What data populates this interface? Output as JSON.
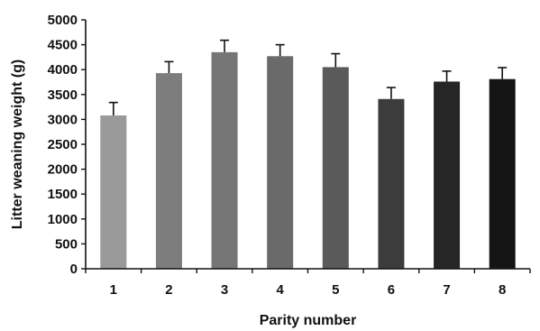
{
  "chart_data": {
    "type": "bar",
    "title": "",
    "xlabel": "Parity number",
    "ylabel": "Litter weaning weight (g)",
    "categories": [
      "1",
      "2",
      "3",
      "4",
      "5",
      "6",
      "7",
      "8"
    ],
    "values": [
      3080,
      3930,
      4350,
      4270,
      4050,
      3410,
      3760,
      3810
    ],
    "error_plus": [
      260,
      230,
      240,
      230,
      270,
      230,
      210,
      230
    ],
    "ylim": [
      0,
      5000
    ],
    "yticks": [
      0,
      500,
      1000,
      1500,
      2000,
      2500,
      3000,
      3500,
      4000,
      4500,
      5000
    ],
    "grid": false,
    "legend": "none",
    "bar_colors": [
      "#9a9a9a",
      "#7d7d7d",
      "#767676",
      "#6a6a6a",
      "#5a5a5a",
      "#3c3c3c",
      "#262626",
      "#151515"
    ]
  }
}
